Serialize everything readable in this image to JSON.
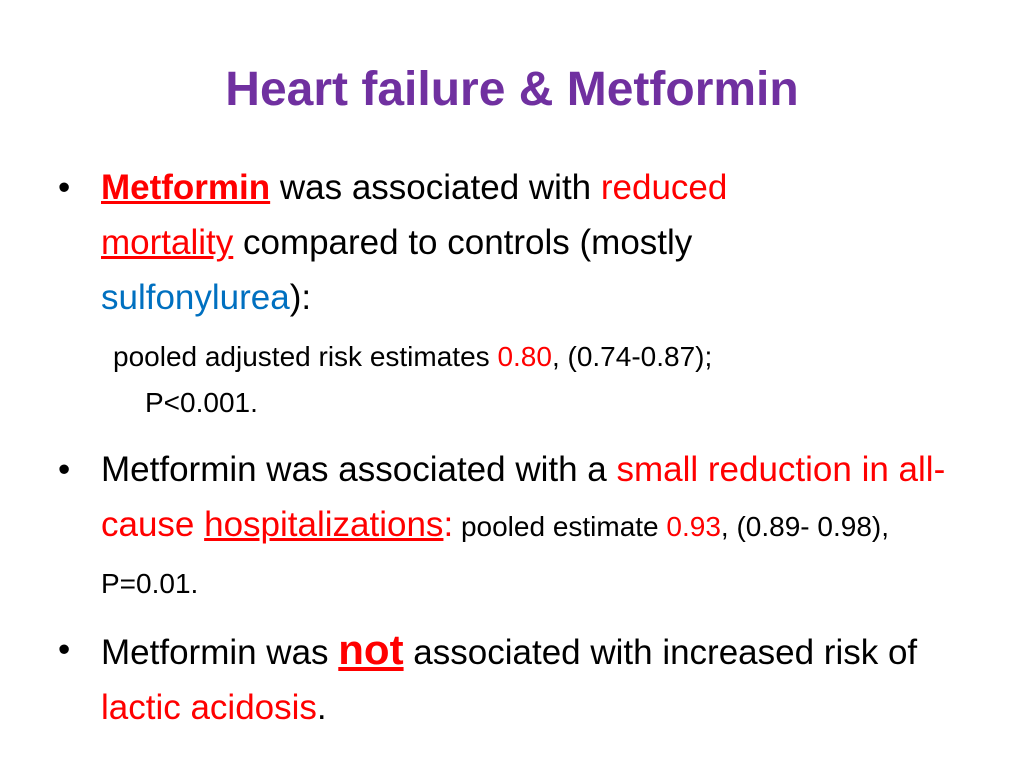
{
  "title": "Heart failure & Metformin",
  "colors": {
    "title": "#7030a0",
    "highlight": "#ff0000",
    "drug_class": "#0070c0"
  },
  "bullet_symbol": "•",
  "bullet1": {
    "drug": "Metformin",
    "t1": " was associated with ",
    "hl": "reduced",
    "br1": " ",
    "hl2": "mortality",
    "t2": " compared to controls (mostly ",
    "cls": "sulfonylurea",
    "t3": "):"
  },
  "sub1": {
    "t1": "pooled adjusted risk estimates ",
    "val": "0.80",
    "t2": ", (0.74-0.87);",
    "t3": "P<0.001."
  },
  "bullet2": {
    "t1": "Metformin was associated with a ",
    "hl": "small reduction in all-cause ",
    "hl_u": "hospitalizations",
    "colon": ":",
    "small1": " pooled estimate ",
    "val": "0.93",
    "small2": ", (0.89- 0.98), P=0.01."
  },
  "bullet3": {
    "t1": "Metformin was ",
    "not": "not",
    "t2": " associated with increased risk of ",
    "hl": "lactic acidosis",
    "end": "."
  }
}
